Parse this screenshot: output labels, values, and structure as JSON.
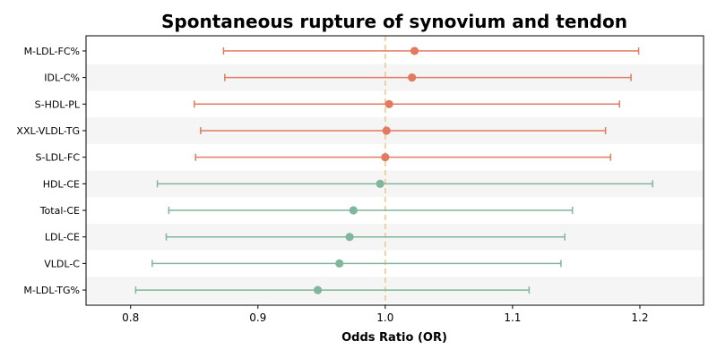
{
  "chart_data": {
    "type": "forest",
    "title": "Spontaneous rupture of synovium and tendon",
    "xlabel": "Odds Ratio (OR)",
    "ylabel": "",
    "xlim": [
      0.765,
      1.25
    ],
    "xticks": [
      0.8,
      0.9,
      1.0,
      1.1,
      1.2
    ],
    "xtick_labels": [
      "0.8",
      "0.9",
      "1.0",
      "1.1",
      "1.2"
    ],
    "reference_line": 1.0,
    "grid": false,
    "row_banding": true,
    "colors": {
      "risk": "#e07b5f",
      "protective": "#80b69b",
      "reference_line": "#f5c78a",
      "band": "#f5f5f5"
    },
    "rows": [
      {
        "label": "M-LDL-FC%",
        "or": 1.023,
        "lower": 0.873,
        "upper": 1.199,
        "group": "risk"
      },
      {
        "label": "IDL-C%",
        "or": 1.021,
        "lower": 0.874,
        "upper": 1.193,
        "group": "risk"
      },
      {
        "label": "S-HDL-PL",
        "or": 1.003,
        "lower": 0.85,
        "upper": 1.184,
        "group": "risk"
      },
      {
        "label": "XXL-VLDL-TG",
        "or": 1.001,
        "lower": 0.855,
        "upper": 1.173,
        "group": "risk"
      },
      {
        "label": "S-LDL-FC",
        "or": 1.0,
        "lower": 0.851,
        "upper": 1.177,
        "group": "risk"
      },
      {
        "label": "HDL-CE",
        "or": 0.996,
        "lower": 0.821,
        "upper": 1.21,
        "group": "protective"
      },
      {
        "label": "Total-CE",
        "or": 0.975,
        "lower": 0.83,
        "upper": 1.147,
        "group": "protective"
      },
      {
        "label": "LDL-CE",
        "or": 0.972,
        "lower": 0.828,
        "upper": 1.141,
        "group": "protective"
      },
      {
        "label": "VLDL-C",
        "or": 0.964,
        "lower": 0.817,
        "upper": 1.138,
        "group": "protective"
      },
      {
        "label": "M-LDL-TG%",
        "or": 0.947,
        "lower": 0.804,
        "upper": 1.113,
        "group": "protective"
      }
    ]
  }
}
